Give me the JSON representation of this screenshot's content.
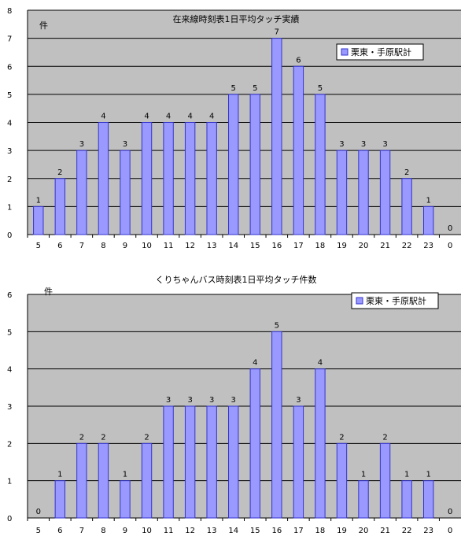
{
  "chart_data": [
    {
      "type": "bar",
      "title": "在来線時刻表1日平均タッチ実績",
      "ylabel": "件",
      "xlabel": "",
      "categories": [
        "5",
        "6",
        "7",
        "8",
        "9",
        "10",
        "11",
        "12",
        "13",
        "14",
        "15",
        "16",
        "17",
        "18",
        "19",
        "20",
        "21",
        "22",
        "23",
        "0"
      ],
      "series": [
        {
          "name": "栗東・手原駅計",
          "values": [
            1,
            2,
            3,
            4,
            3,
            4,
            4,
            4,
            4,
            5,
            5,
            7,
            6,
            5,
            3,
            3,
            3,
            2,
            1,
            0
          ]
        }
      ],
      "ylim": [
        0,
        8
      ],
      "yticks": [
        0,
        1,
        2,
        3,
        4,
        5,
        6,
        7,
        8
      ],
      "grid": true,
      "legend": "top-right",
      "colors": {
        "bar": "#9999ff",
        "bar_edge": "#3333cc",
        "plot_bg": "#c0c0c0",
        "grid": "#000000"
      }
    },
    {
      "type": "bar",
      "title": "くりちゃんバス時刻表1日平均タッチ件数",
      "ylabel": "件",
      "xlabel": "",
      "categories": [
        "5",
        "6",
        "7",
        "8",
        "9",
        "10",
        "11",
        "12",
        "13",
        "14",
        "15",
        "16",
        "17",
        "18",
        "19",
        "20",
        "21",
        "22",
        "23",
        "0"
      ],
      "series": [
        {
          "name": "栗東・手原駅計",
          "values": [
            0,
            1,
            2,
            2,
            1,
            2,
            3,
            3,
            3,
            3,
            4,
            5,
            3,
            4,
            2,
            1,
            2,
            1,
            1,
            0
          ]
        }
      ],
      "ylim": [
        0,
        6
      ],
      "yticks": [
        0,
        1,
        2,
        3,
        4,
        5,
        6
      ],
      "grid": true,
      "legend": "top-right",
      "colors": {
        "bar": "#9999ff",
        "bar_edge": "#3333cc",
        "plot_bg": "#c0c0c0",
        "grid": "#000000"
      }
    }
  ]
}
